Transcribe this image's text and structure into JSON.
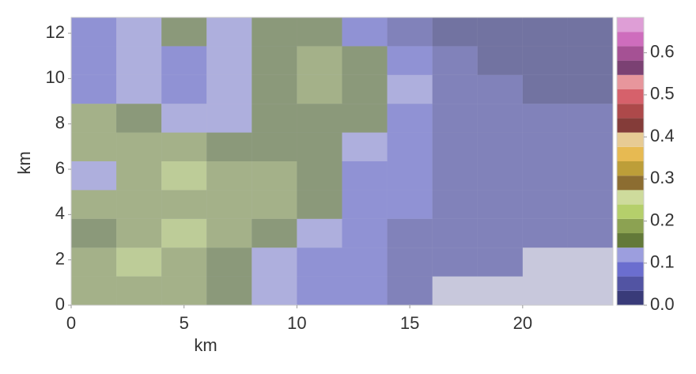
{
  "chart_data": {
    "type": "heatmap",
    "xlabel": "km",
    "ylabel": "km",
    "xlim": [
      0,
      24
    ],
    "ylim": [
      0,
      12.7
    ],
    "xticks": [
      0,
      5,
      10,
      15,
      20
    ],
    "yticks": [
      0,
      2,
      4,
      6,
      8,
      10,
      12
    ],
    "x": [
      0,
      2,
      4,
      6,
      8,
      10,
      12,
      14,
      16,
      18,
      20,
      22,
      24
    ],
    "y": [
      0,
      1.27,
      2.54,
      3.81,
      5.08,
      6.35,
      7.62,
      8.89,
      10.16,
      11.43,
      12.7
    ],
    "z": [
      [
        0.18,
        0.2,
        0.18,
        0.15,
        0.12,
        0.1,
        0.08,
        0.06,
        null,
        null,
        null,
        null
      ],
      [
        0.2,
        0.22,
        0.2,
        0.16,
        0.12,
        0.1,
        0.08,
        0.06,
        0.05,
        0.04,
        null,
        null
      ],
      [
        0.17,
        0.2,
        0.22,
        0.18,
        0.14,
        0.12,
        0.08,
        0.06,
        0.05,
        0.05,
        0.04,
        0.04
      ],
      [
        0.2,
        0.18,
        0.2,
        0.2,
        0.18,
        0.14,
        0.1,
        0.07,
        0.05,
        0.05,
        0.04,
        0.04
      ],
      [
        0.12,
        0.2,
        0.22,
        0.2,
        0.2,
        0.16,
        0.1,
        0.08,
        0.06,
        0.05,
        0.04,
        0.04
      ],
      [
        0.2,
        0.2,
        0.18,
        0.16,
        0.15,
        0.14,
        0.12,
        0.1,
        0.06,
        0.05,
        0.04,
        0.04
      ],
      [
        0.18,
        0.16,
        0.12,
        0.12,
        0.14,
        0.16,
        0.14,
        0.1,
        0.06,
        0.05,
        0.04,
        0.04
      ],
      [
        0.1,
        0.12,
        0.1,
        0.12,
        0.16,
        0.18,
        0.16,
        0.12,
        0.05,
        0.04,
        0.03,
        0.03
      ],
      [
        0.1,
        0.12,
        0.1,
        0.12,
        0.16,
        0.2,
        0.14,
        0.08,
        0.04,
        0.03,
        0.03,
        0.03
      ],
      [
        0.1,
        0.12,
        0.14,
        0.12,
        0.14,
        0.16,
        0.1,
        0.05,
        0.03,
        0.03,
        0.03,
        0.03
      ]
    ],
    "clim": [
      0,
      0.684
    ],
    "cticks": [
      {
        "value": 0,
        "label": "0.0"
      },
      0.1,
      0.2,
      0.3,
      0.4,
      0.5,
      0.6
    ],
    "colors": [
      "#393b79",
      "#5254a3",
      "#6b6ecf",
      "#9c9ede",
      "#637939",
      "#8ca252",
      "#b5cf6b",
      "#cedb9c",
      "#8c6d31",
      "#bd9e39",
      "#e7ba52",
      "#e7cb94",
      "#843c39",
      "#ad494a",
      "#d6616b",
      "#e7969c",
      "#7b4173",
      "#a55194",
      "#ce6dbd",
      "#de9ed6"
    ]
  }
}
